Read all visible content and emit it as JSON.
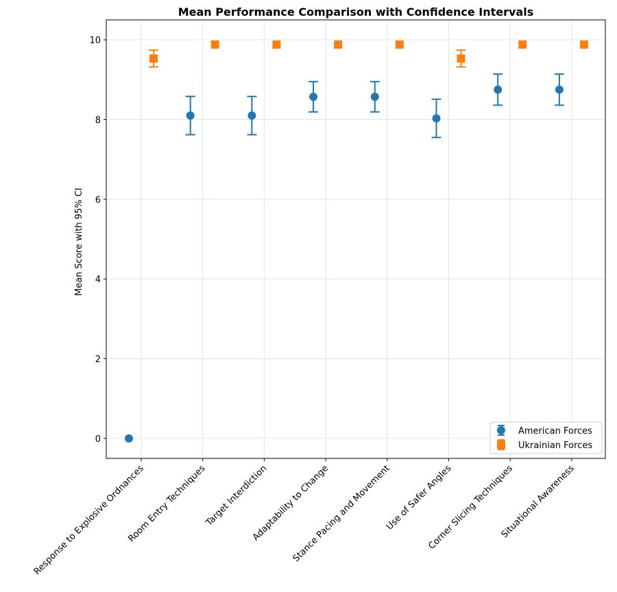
{
  "chart_data": {
    "type": "scatter",
    "title": "Mean Performance Comparison with Confidence Intervals",
    "xlabel": "",
    "ylabel": "Mean Score with 95% CI",
    "ylim": [
      -0.5,
      10.5
    ],
    "yticks": [
      0,
      2,
      4,
      6,
      8,
      10
    ],
    "grid": true,
    "legend_position": "lower-right",
    "categories": [
      "Response to Explosive Ordnances",
      "Room Entry Techniques",
      "Target Interdiction",
      "Adaptability to Change",
      "Stance Pacing and Movement",
      "Use of Safer Angles",
      "Corner Slicing Techniques",
      "Situational Awareness"
    ],
    "series": [
      {
        "name": "American Forces",
        "marker": "circle",
        "color": "#1f77b4",
        "values": [
          0.0,
          8.1,
          8.1,
          8.57,
          8.57,
          8.03,
          8.75,
          8.75
        ],
        "ci_low": [
          null,
          7.62,
          7.62,
          8.19,
          8.19,
          7.55,
          8.36,
          8.36
        ],
        "ci_high": [
          null,
          8.58,
          8.58,
          8.95,
          8.95,
          8.51,
          9.14,
          9.14
        ]
      },
      {
        "name": "Ukrainian Forces",
        "marker": "square",
        "color": "#ff7f0e",
        "values": [
          9.53,
          9.88,
          9.88,
          9.88,
          9.88,
          9.53,
          9.88,
          9.88
        ],
        "ci_low": [
          9.32,
          null,
          null,
          null,
          null,
          9.32,
          null,
          null
        ],
        "ci_high": [
          9.74,
          null,
          null,
          null,
          null,
          9.74,
          null,
          null
        ]
      }
    ]
  }
}
